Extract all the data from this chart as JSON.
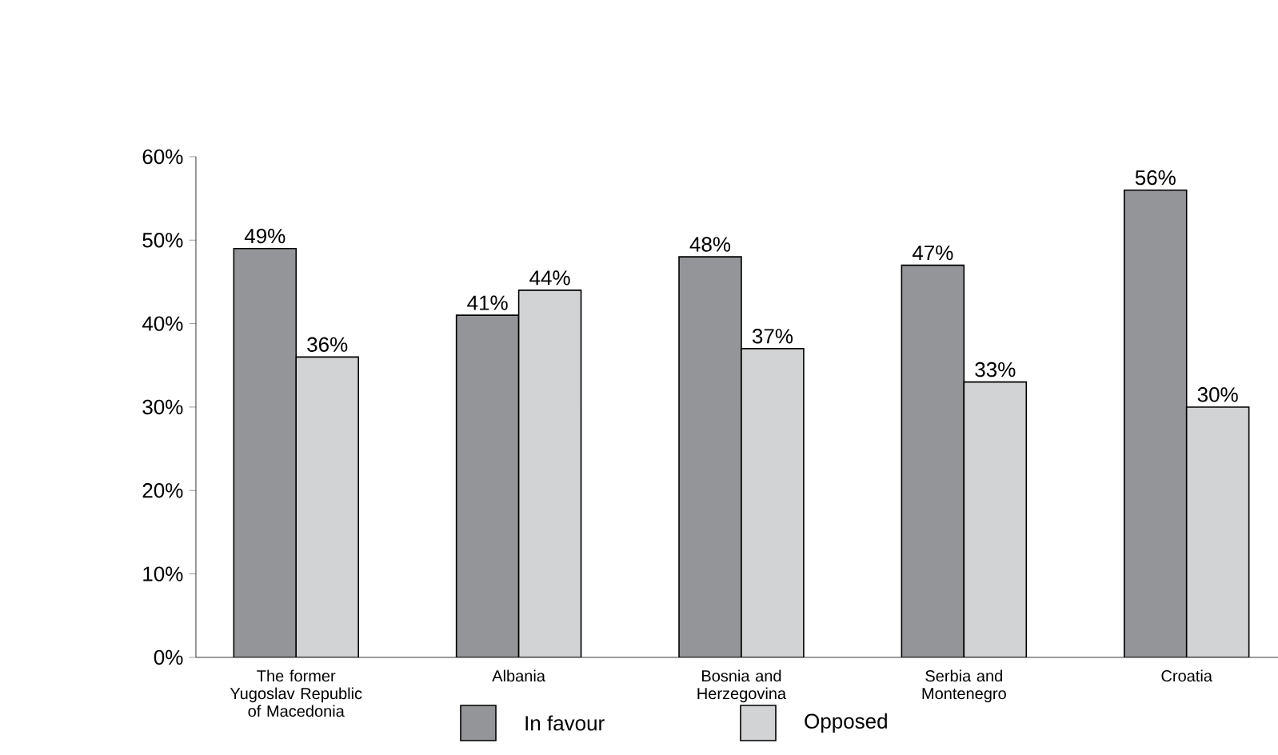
{
  "chart_data": {
    "type": "bar",
    "categories": [
      "The former Yugoslav Republic of Macedonia",
      "Albania",
      "Bosnia and Herzegovina",
      "Serbia and Montenegro",
      "Croatia"
    ],
    "series": [
      {
        "name": "In favour",
        "color": "#939598",
        "values": [
          49,
          41,
          48,
          47,
          56
        ],
        "value_labels": [
          "49%",
          "41%",
          "48%",
          "47%",
          "56%"
        ]
      },
      {
        "name": "Opposed",
        "color": "#d1d3d4",
        "values": [
          36,
          44,
          37,
          33,
          30
        ],
        "value_labels": [
          "36%",
          "44%",
          "37%",
          "33%",
          "30%"
        ]
      }
    ],
    "ylim": [
      0,
      60
    ],
    "yticks": [
      {
        "value": 0,
        "label": "0%"
      },
      {
        "value": 10,
        "label": "10%"
      },
      {
        "value": 20,
        "label": "20%"
      },
      {
        "value": 30,
        "label": "30%"
      },
      {
        "value": 40,
        "label": "40%"
      },
      {
        "value": 50,
        "label": "50%"
      },
      {
        "value": 60,
        "label": "60%"
      }
    ],
    "grid": false,
    "legend": "bottom"
  }
}
